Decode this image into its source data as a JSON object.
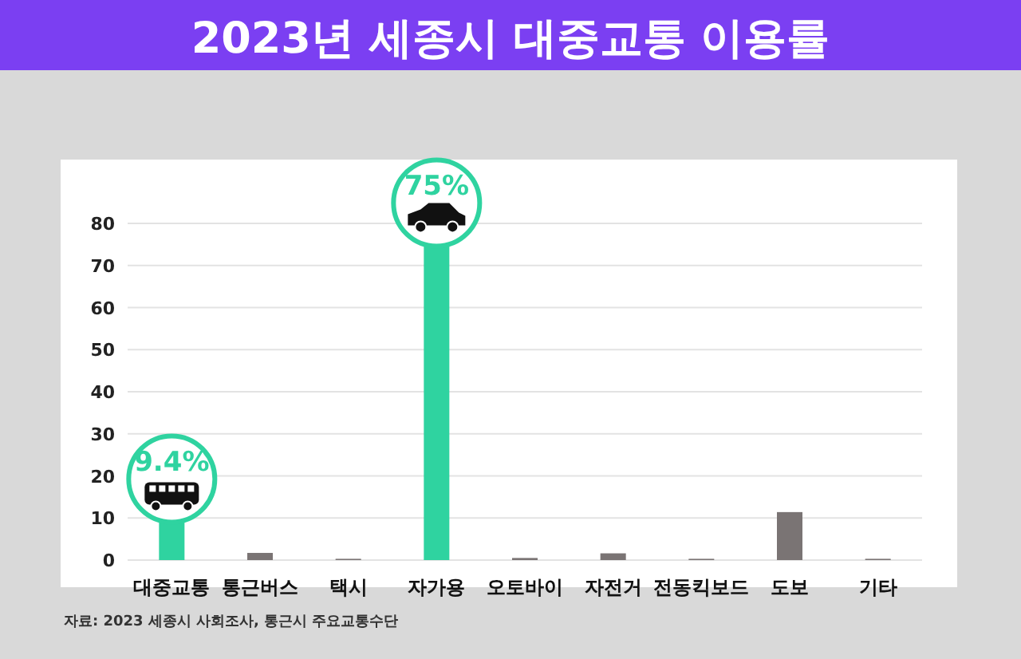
{
  "chart_data": {
    "type": "bar",
    "title": "2023년 세종시 대중교통 이용률",
    "categories": [
      "대중교통",
      "통근버스",
      "택시",
      "자가용",
      "오토바이",
      "자전거",
      "전동킥보드",
      "도보",
      "기타"
    ],
    "values": [
      9.4,
      1.7,
      0.3,
      75,
      0.5,
      1.6,
      0.3,
      11.4,
      0.3
    ],
    "value_labels": [
      "9.4%",
      null,
      null,
      "75%",
      null,
      null,
      null,
      null,
      null
    ],
    "colors": [
      "#2fd3a0",
      "#7a7474",
      "#7a7474",
      "#2fd3a0",
      "#7a7474",
      "#7a7474",
      "#7a7474",
      "#7a7474",
      "#7a7474"
    ],
    "ylim": [
      0,
      80
    ],
    "yticks": [
      0,
      10,
      20,
      30,
      40,
      50,
      60,
      70,
      80
    ],
    "grid": "y",
    "annotations": [
      "자료: 2023 세종시 사회조사, 통근시 주요교통수단"
    ]
  }
}
